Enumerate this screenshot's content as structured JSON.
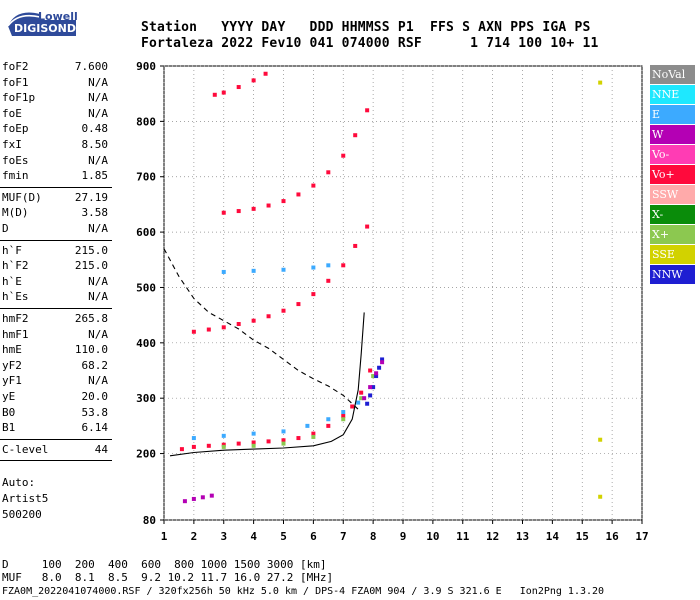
{
  "logo": {
    "brand": "Lowell",
    "product": "DIGISONDE"
  },
  "header": {
    "line1": "Station   YYYY DAY   DDD HHMMSS P1  FFS S AXN PPS IGA PS",
    "line2": "Fortaleza 2022 Fev10 041 074000 RSF      1 714 100 10+ 11"
  },
  "params": {
    "groups": [
      [
        {
          "k": "foF2",
          "v": "7.600"
        },
        {
          "k": "foF1",
          "v": "N/A"
        },
        {
          "k": "foF1p",
          "v": "N/A"
        },
        {
          "k": "foE",
          "v": "N/A"
        },
        {
          "k": "foEp",
          "v": "0.48"
        },
        {
          "k": "fxI",
          "v": "8.50"
        },
        {
          "k": "foEs",
          "v": "N/A"
        },
        {
          "k": "fmin",
          "v": "1.85"
        }
      ],
      [
        {
          "k": "MUF(D)",
          "v": "27.19"
        },
        {
          "k": "M(D)",
          "v": "3.58"
        },
        {
          "k": "D",
          "v": "N/A"
        }
      ],
      [
        {
          "k": "h`F",
          "v": "215.0"
        },
        {
          "k": "h`F2",
          "v": "215.0"
        },
        {
          "k": "h`E",
          "v": "N/A"
        },
        {
          "k": "h`Es",
          "v": "N/A"
        }
      ],
      [
        {
          "k": "hmF2",
          "v": "265.8"
        },
        {
          "k": "hmF1",
          "v": "N/A"
        },
        {
          "k": "hmE",
          "v": "110.0"
        },
        {
          "k": "yF2",
          "v": "68.2"
        },
        {
          "k": "yF1",
          "v": "N/A"
        },
        {
          "k": "yE",
          "v": "20.0"
        },
        {
          "k": "B0",
          "v": "53.8"
        },
        {
          "k": "B1",
          "v": "6.14"
        }
      ],
      [
        {
          "k": "C-level",
          "v": "44"
        }
      ]
    ],
    "auto": [
      "Auto:",
      "Artist5",
      "500200"
    ]
  },
  "legend": [
    {
      "label": "NoVal",
      "color": "#8c8c8c"
    },
    {
      "label": "NNE",
      "color": "#1ee8ff"
    },
    {
      "label": "E",
      "color": "#3caaff"
    },
    {
      "label": "W",
      "color": "#b400b4"
    },
    {
      "label": "Vo-",
      "color": "#ff3cb4"
    },
    {
      "label": "Vo+",
      "color": "#ff0a3c"
    },
    {
      "label": "SSW",
      "color": "#ffaaaa"
    },
    {
      "label": "X-",
      "color": "#0a8c0a"
    },
    {
      "label": "X+",
      "color": "#8cc850"
    },
    {
      "label": "SSE",
      "color": "#d2d200"
    },
    {
      "label": "NNW",
      "color": "#1e1ed2"
    }
  ],
  "footer": {
    "line1": "D     100  200  400  600  800 1000 1500 3000 [km]",
    "line2": "MUF   8.0  8.1  8.5  9.2 10.2 11.7 16.0 27.2 [MHz]",
    "line3": "FZA0M_2022041074000.RSF / 320fx256h 50 kHz 5.0 km / DPS-4 FZA0M 904 / 3.9 S 321.6 E   Ion2Png 1.3.20"
  },
  "chart_data": {
    "type": "scatter",
    "xlim": [
      1,
      17
    ],
    "ylim": [
      80,
      900
    ],
    "xticks": [
      1,
      2,
      3,
      4,
      5,
      6,
      7,
      8,
      9,
      10,
      11,
      12,
      13,
      14,
      15,
      16,
      17
    ],
    "yticks": [
      80,
      200,
      300,
      400,
      500,
      600,
      700,
      800,
      900
    ],
    "xlabel": "",
    "ylabel": "",
    "grid": true,
    "legend_position": "right",
    "series": [
      {
        "color": "#ff0a3c",
        "x": [
          1.6,
          2.0,
          2.5,
          3.0,
          3.5,
          4.0,
          4.5,
          5.0,
          5.5,
          6.0,
          6.5,
          7.0,
          7.3,
          7.6,
          7.9
        ],
        "y": [
          208,
          212,
          214,
          216,
          218,
          220,
          222,
          224,
          228,
          236,
          250,
          268,
          285,
          310,
          350
        ]
      },
      {
        "color": "#3caaff",
        "x": [
          2.0,
          3.0,
          4.0,
          5.0,
          5.8,
          6.5,
          7.0,
          7.5
        ],
        "y": [
          228,
          232,
          236,
          240,
          250,
          262,
          275,
          292
        ]
      },
      {
        "color": "#8cc850",
        "x": [
          3.0,
          4.0,
          5.0,
          6.0,
          7.0,
          7.6,
          8.0
        ],
        "y": [
          212,
          214,
          218,
          230,
          262,
          300,
          340
        ]
      },
      {
        "color": "#ff0a3c",
        "x": [
          2.0,
          2.5,
          3.0,
          3.5,
          4.0,
          4.5,
          5.0,
          5.5,
          6.0,
          6.5,
          7.0,
          7.4,
          7.8
        ],
        "y": [
          420,
          424,
          428,
          434,
          440,
          448,
          458,
          470,
          488,
          512,
          540,
          575,
          610
        ]
      },
      {
        "color": "#3caaff",
        "x": [
          3.0,
          4.0,
          5.0,
          6.0,
          6.5
        ],
        "y": [
          528,
          530,
          532,
          536,
          540
        ]
      },
      {
        "color": "#ff0a3c",
        "x": [
          3.0,
          3.5,
          4.0,
          4.5,
          5.0,
          5.5,
          6.0,
          6.5,
          7.0,
          7.4,
          7.8
        ],
        "y": [
          635,
          638,
          642,
          648,
          656,
          668,
          684,
          708,
          738,
          775,
          820
        ]
      },
      {
        "color": "#ff0a3c",
        "x": [
          2.7,
          3.0,
          3.5,
          4.0,
          4.4
        ],
        "y": [
          848,
          852,
          862,
          874,
          886
        ]
      },
      {
        "color": "#1e1ed2",
        "x": [
          7.8,
          7.9,
          8.0,
          8.1,
          8.2,
          8.3
        ],
        "y": [
          290,
          305,
          320,
          340,
          355,
          370
        ]
      },
      {
        "color": "#b400b4",
        "x": [
          7.7,
          7.9,
          8.1,
          8.3
        ],
        "y": [
          300,
          320,
          345,
          365
        ]
      },
      {
        "color": "#b400b4",
        "x": [
          1.7,
          2.0,
          2.3,
          2.6
        ],
        "y": [
          114,
          118,
          121,
          124
        ]
      },
      {
        "color": "#d2d200",
        "x": [
          15.6,
          15.6,
          15.6
        ],
        "y": [
          870,
          225,
          122
        ]
      }
    ],
    "profile_solid": {
      "x": [
        1.2,
        2.0,
        3.0,
        4.0,
        5.0,
        6.0,
        6.6,
        7.0,
        7.3,
        7.5,
        7.6,
        7.7
      ],
      "y": [
        196,
        202,
        206,
        208,
        210,
        214,
        222,
        234,
        262,
        315,
        380,
        455
      ]
    },
    "profile_dashed": {
      "x": [
        1.0,
        1.5,
        2.0,
        2.5,
        3.0,
        3.5,
        4.0,
        4.5,
        5.0,
        5.5,
        6.0,
        6.5,
        7.0,
        7.5
      ],
      "y": [
        570,
        520,
        480,
        455,
        440,
        425,
        405,
        390,
        370,
        350,
        335,
        322,
        305,
        280
      ]
    }
  }
}
